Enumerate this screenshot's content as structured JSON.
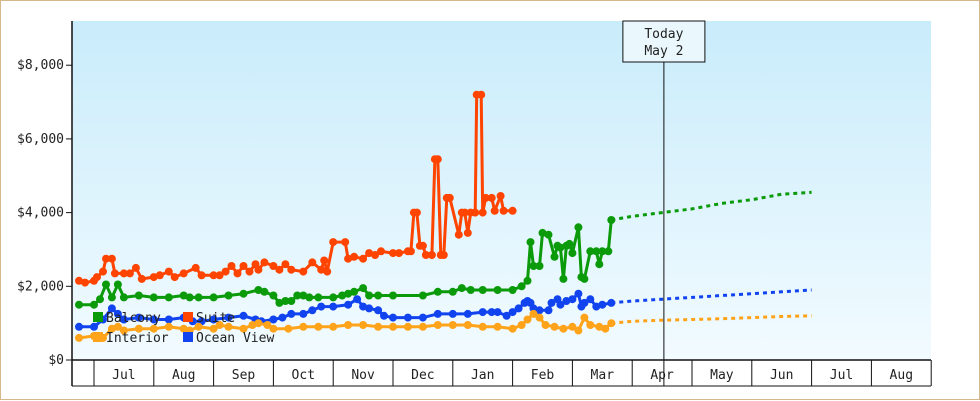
{
  "chart_data": {
    "type": "line",
    "title": "",
    "xlabel": "",
    "ylabel": "",
    "ylim": [
      0,
      9200
    ],
    "y_ticks": [
      {
        "value": 0,
        "label": "$0"
      },
      {
        "value": 2000,
        "label": "$2,000"
      },
      {
        "value": 4000,
        "label": "$4,000"
      },
      {
        "value": 6000,
        "label": "$6,000"
      },
      {
        "value": 8000,
        "label": "$8,000"
      }
    ],
    "months": [
      "Jul",
      "Aug",
      "Sep",
      "Oct",
      "Nov",
      "Dec",
      "Jan",
      "Feb",
      "Mar",
      "Apr",
      "May",
      "Jun",
      "Jul",
      "Aug"
    ],
    "today": {
      "line1": "Today",
      "line2": "May 2",
      "month_index": 10.03
    },
    "legend": [
      {
        "name": "Balcony",
        "color": "#0a9a0a"
      },
      {
        "name": "Suite",
        "color": "#ff4400"
      },
      {
        "name": "Interior",
        "color": "#ffa31a"
      },
      {
        "name": "Ocean View",
        "color": "#1144ee"
      }
    ],
    "series": [
      {
        "name": "Suite",
        "color": "#ff4400",
        "points": [
          [
            -0.5,
            2150
          ],
          [
            -0.3,
            2100
          ],
          [
            0,
            2150
          ],
          [
            0.1,
            2250
          ],
          [
            0.3,
            2400
          ],
          [
            0.4,
            2750
          ],
          [
            0.6,
            2750
          ],
          [
            0.7,
            2350
          ],
          [
            1,
            2350
          ],
          [
            1.2,
            2350
          ],
          [
            1.4,
            2500
          ],
          [
            1.6,
            2200
          ],
          [
            2,
            2250
          ],
          [
            2.2,
            2300
          ],
          [
            2.5,
            2400
          ],
          [
            2.7,
            2250
          ],
          [
            3,
            2350
          ],
          [
            3.4,
            2500
          ],
          [
            3.6,
            2300
          ],
          [
            4,
            2300
          ],
          [
            4.2,
            2300
          ],
          [
            4.4,
            2400
          ],
          [
            4.6,
            2550
          ],
          [
            4.8,
            2350
          ],
          [
            5,
            2550
          ],
          [
            5.2,
            2400
          ],
          [
            5.4,
            2600
          ],
          [
            5.5,
            2450
          ],
          [
            5.7,
            2650
          ],
          [
            6,
            2550
          ],
          [
            6.2,
            2450
          ],
          [
            6.4,
            2600
          ],
          [
            6.6,
            2450
          ],
          [
            7,
            2400
          ],
          [
            7.3,
            2650
          ],
          [
            7.6,
            2450
          ],
          [
            7.7,
            2700
          ],
          [
            7.8,
            2400
          ],
          [
            8,
            3200
          ],
          [
            8.4,
            3200
          ],
          [
            8.5,
            2750
          ],
          [
            8.7,
            2800
          ],
          [
            9,
            2750
          ],
          [
            9.2,
            2900
          ],
          [
            9.4,
            2850
          ],
          [
            9.6,
            2950
          ],
          [
            10,
            2900
          ],
          [
            10.2,
            2900
          ],
          [
            10.5,
            2950
          ],
          [
            10.6,
            2950
          ],
          [
            10.7,
            4000
          ],
          [
            10.8,
            4000
          ],
          [
            10.9,
            3100
          ],
          [
            11,
            3100
          ],
          [
            11.1,
            2850
          ],
          [
            11.3,
            2850
          ],
          [
            11.4,
            5450
          ],
          [
            11.5,
            5450
          ],
          [
            11.6,
            2850
          ],
          [
            11.7,
            2850
          ],
          [
            11.8,
            4400
          ],
          [
            11.9,
            4400
          ],
          [
            12.2,
            3400
          ],
          [
            12.3,
            4000
          ],
          [
            12.4,
            4000
          ],
          [
            12.5,
            3450
          ],
          [
            12.6,
            4000
          ],
          [
            12.75,
            4000
          ],
          [
            12.8,
            7200
          ],
          [
            12.95,
            7200
          ],
          [
            13,
            4000
          ],
          [
            13.1,
            4400
          ],
          [
            13.3,
            4400
          ],
          [
            13.4,
            4050
          ],
          [
            13.6,
            4450
          ],
          [
            13.7,
            4050
          ],
          [
            14,
            4050
          ]
        ]
      },
      {
        "name": "Balcony",
        "color": "#0a9a0a",
        "points": [
          [
            -0.5,
            1500
          ],
          [
            0,
            1500
          ],
          [
            0.2,
            1650
          ],
          [
            0.4,
            2050
          ],
          [
            0.6,
            1700
          ],
          [
            0.8,
            2050
          ],
          [
            1,
            1700
          ],
          [
            1.5,
            1750
          ],
          [
            2,
            1700
          ],
          [
            2.5,
            1700
          ],
          [
            3,
            1750
          ],
          [
            3.2,
            1700
          ],
          [
            3.5,
            1700
          ],
          [
            4,
            1700
          ],
          [
            4.5,
            1750
          ],
          [
            5,
            1800
          ],
          [
            5.5,
            1900
          ],
          [
            5.7,
            1850
          ],
          [
            6,
            1750
          ],
          [
            6.2,
            1550
          ],
          [
            6.4,
            1600
          ],
          [
            6.6,
            1600
          ],
          [
            6.8,
            1750
          ],
          [
            7,
            1750
          ],
          [
            7.2,
            1700
          ],
          [
            7.5,
            1700
          ],
          [
            8,
            1700
          ],
          [
            8.3,
            1750
          ],
          [
            8.5,
            1800
          ],
          [
            8.7,
            1850
          ],
          [
            9,
            1950
          ],
          [
            9.2,
            1750
          ],
          [
            9.5,
            1750
          ],
          [
            10,
            1750
          ],
          [
            11,
            1750
          ],
          [
            11.5,
            1850
          ],
          [
            12,
            1850
          ],
          [
            12.3,
            1950
          ],
          [
            12.6,
            1900
          ],
          [
            13,
            1900
          ],
          [
            13.5,
            1900
          ],
          [
            14,
            1900
          ],
          [
            14.3,
            2000
          ],
          [
            14.5,
            2150
          ],
          [
            14.6,
            3200
          ],
          [
            14.7,
            2550
          ],
          [
            14.9,
            2550
          ],
          [
            15,
            3450
          ],
          [
            15.2,
            3400
          ],
          [
            15.4,
            2800
          ],
          [
            15.5,
            3100
          ],
          [
            15.6,
            3050
          ],
          [
            15.7,
            2200
          ],
          [
            15.8,
            3100
          ],
          [
            15.9,
            3150
          ],
          [
            16,
            2900
          ],
          [
            16.2,
            3600
          ],
          [
            16.3,
            2250
          ],
          [
            16.4,
            2200
          ],
          [
            16.6,
            2950
          ],
          [
            16.8,
            2950
          ],
          [
            16.9,
            2600
          ],
          [
            17.0,
            2950
          ],
          [
            17.2,
            2950
          ],
          [
            17.3,
            3800
          ]
        ]
      },
      {
        "name": "Ocean View",
        "color": "#1144ee",
        "points": [
          [
            -0.5,
            900
          ],
          [
            0,
            900
          ],
          [
            0.3,
            1100
          ],
          [
            0.6,
            1400
          ],
          [
            0.8,
            1250
          ],
          [
            1,
            1100
          ],
          [
            1.5,
            1150
          ],
          [
            2,
            1100
          ],
          [
            2.5,
            1100
          ],
          [
            3,
            1150
          ],
          [
            3.3,
            1050
          ],
          [
            3.6,
            1050
          ],
          [
            4,
            1100
          ],
          [
            4.5,
            1150
          ],
          [
            5,
            1200
          ],
          [
            5.4,
            1100
          ],
          [
            5.6,
            1050
          ],
          [
            6,
            1100
          ],
          [
            6.3,
            1150
          ],
          [
            6.6,
            1250
          ],
          [
            7,
            1250
          ],
          [
            7.3,
            1350
          ],
          [
            7.6,
            1450
          ],
          [
            8,
            1450
          ],
          [
            8.5,
            1500
          ],
          [
            8.8,
            1650
          ],
          [
            9,
            1450
          ],
          [
            9.2,
            1400
          ],
          [
            9.5,
            1350
          ],
          [
            9.7,
            1200
          ],
          [
            10,
            1150
          ],
          [
            10.5,
            1150
          ],
          [
            11,
            1150
          ],
          [
            11.5,
            1250
          ],
          [
            12,
            1250
          ],
          [
            12.5,
            1250
          ],
          [
            13,
            1300
          ],
          [
            13.3,
            1300
          ],
          [
            13.5,
            1300
          ],
          [
            13.8,
            1200
          ],
          [
            14,
            1300
          ],
          [
            14.2,
            1400
          ],
          [
            14.4,
            1550
          ],
          [
            14.5,
            1600
          ],
          [
            14.6,
            1550
          ],
          [
            14.7,
            1400
          ],
          [
            14.9,
            1350
          ],
          [
            15.2,
            1350
          ],
          [
            15.3,
            1550
          ],
          [
            15.5,
            1650
          ],
          [
            15.6,
            1500
          ],
          [
            15.8,
            1600
          ],
          [
            16,
            1650
          ],
          [
            16.2,
            1800
          ],
          [
            16.3,
            1450
          ],
          [
            16.4,
            1550
          ],
          [
            16.6,
            1650
          ],
          [
            16.8,
            1450
          ],
          [
            17,
            1500
          ],
          [
            17.3,
            1550
          ]
        ]
      },
      {
        "name": "Interior",
        "color": "#ffa31a",
        "points": [
          [
            -0.5,
            600
          ],
          [
            0,
            650
          ],
          [
            0.3,
            600
          ],
          [
            0.6,
            850
          ],
          [
            0.8,
            900
          ],
          [
            1,
            800
          ],
          [
            1.5,
            850
          ],
          [
            2,
            850
          ],
          [
            2.5,
            900
          ],
          [
            3,
            850
          ],
          [
            3.2,
            800
          ],
          [
            3.5,
            900
          ],
          [
            4,
            850
          ],
          [
            4.2,
            950
          ],
          [
            4.5,
            900
          ],
          [
            5,
            850
          ],
          [
            5.3,
            950
          ],
          [
            5.5,
            1000
          ],
          [
            5.8,
            950
          ],
          [
            6,
            850
          ],
          [
            6.5,
            850
          ],
          [
            7,
            900
          ],
          [
            7.5,
            900
          ],
          [
            8,
            900
          ],
          [
            8.5,
            950
          ],
          [
            9,
            950
          ],
          [
            9.5,
            900
          ],
          [
            10,
            900
          ],
          [
            10.5,
            900
          ],
          [
            11,
            900
          ],
          [
            11.5,
            950
          ],
          [
            12,
            950
          ],
          [
            12.5,
            950
          ],
          [
            13,
            900
          ],
          [
            13.5,
            900
          ],
          [
            14,
            850
          ],
          [
            14.3,
            950
          ],
          [
            14.5,
            1100
          ],
          [
            14.7,
            1250
          ],
          [
            14.9,
            1150
          ],
          [
            15.1,
            950
          ],
          [
            15.4,
            900
          ],
          [
            15.7,
            850
          ],
          [
            16,
            900
          ],
          [
            16.2,
            800
          ],
          [
            16.4,
            1150
          ],
          [
            16.6,
            950
          ],
          [
            16.9,
            900
          ],
          [
            17.1,
            850
          ],
          [
            17.3,
            1000
          ]
        ]
      }
    ],
    "forecast": [
      {
        "name": "Balcony",
        "color": "#0a9a0a",
        "points": [
          [
            17.3,
            3800
          ],
          [
            18,
            3900
          ],
          [
            19,
            4000
          ],
          [
            20,
            4100
          ],
          [
            21,
            4250
          ],
          [
            22,
            4350
          ],
          [
            23,
            4500
          ],
          [
            24.0,
            4550
          ]
        ]
      },
      {
        "name": "Ocean View",
        "color": "#1144ee",
        "points": [
          [
            17.3,
            1550
          ],
          [
            18,
            1600
          ],
          [
            19,
            1650
          ],
          [
            20,
            1700
          ],
          [
            21,
            1750
          ],
          [
            22,
            1800
          ],
          [
            23,
            1850
          ],
          [
            24.0,
            1900
          ]
        ]
      },
      {
        "name": "Interior",
        "color": "#ffa31a",
        "points": [
          [
            17.3,
            1000
          ],
          [
            18,
            1050
          ],
          [
            19,
            1080
          ],
          [
            20,
            1100
          ],
          [
            21,
            1120
          ],
          [
            22,
            1150
          ],
          [
            23,
            1180
          ],
          [
            24.0,
            1200
          ]
        ]
      }
    ]
  }
}
